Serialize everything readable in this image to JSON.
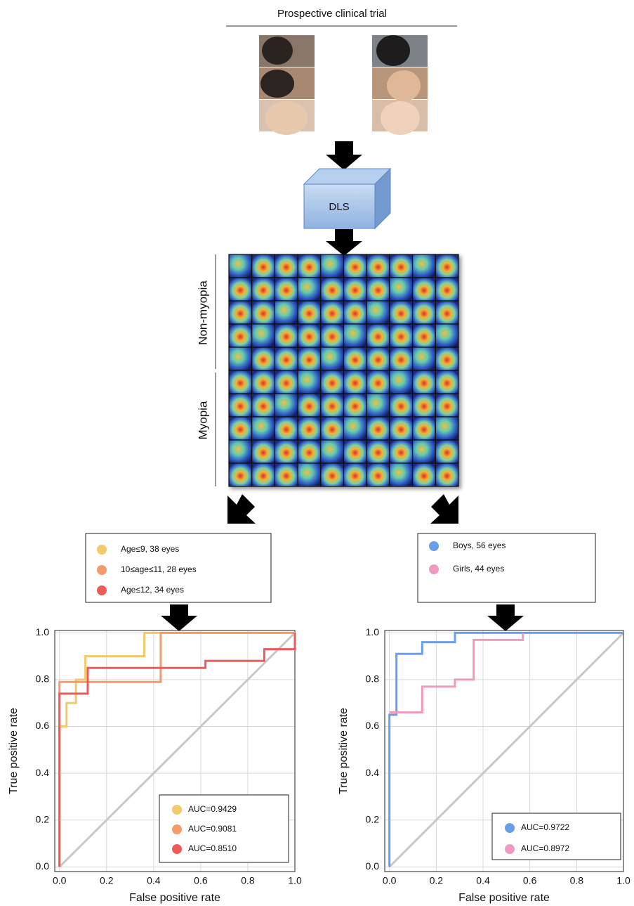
{
  "diagram": {
    "title": "Prospective clinical trial",
    "model": "DLS",
    "group_top": "Non-myopia",
    "group_bottom": "Myopia"
  },
  "chart_data": [
    {
      "type": "line",
      "x_label": "False positive rate",
      "y_label": "True positive rate",
      "xlim": [
        -0.02,
        1.0
      ],
      "ylim": [
        -0.02,
        1.01
      ],
      "xticks": [
        {
          "value": 0,
          "label": "0.0"
        },
        0.2,
        0.4,
        0.6,
        0.8,
        {
          "value": 1,
          "label": "1.0"
        }
      ],
      "yticks": [
        {
          "value": 0,
          "label": "0.0"
        },
        0.2,
        0.4,
        0.6,
        0.8,
        {
          "value": 1,
          "label": "1.0"
        }
      ],
      "grid": true,
      "series": [
        {
          "name": "Age≤9, 38 eyes",
          "auc_label": "AUC=0.9429",
          "color": "#f5c96a",
          "x": [
            0,
            0,
            0.03,
            0.03,
            0.07,
            0.07,
            0.11,
            0.11,
            0.36,
            0.36,
            1
          ],
          "values": [
            0,
            0.6,
            0.6,
            0.7,
            0.7,
            0.8,
            0.8,
            0.9,
            0.9,
            1.0,
            1.0
          ]
        },
        {
          "name": "10≤age≤11, 28 eyes",
          "auc_label": "AUC=0.9081",
          "color": "#f59a6a",
          "x": [
            0,
            0,
            0.43,
            0.43,
            1
          ],
          "values": [
            0,
            0.79,
            0.79,
            1.0,
            1.0
          ]
        },
        {
          "name": "Age≤12, 34 eyes",
          "auc_label": "AUC=0.8510",
          "color": "#ee5a5a",
          "x": [
            0,
            0,
            0.12,
            0.12,
            0.62,
            0.62,
            0.87,
            0.87,
            1,
            1
          ],
          "values": [
            0,
            0.74,
            0.74,
            0.85,
            0.85,
            0.88,
            0.88,
            0.93,
            0.93,
            1.0
          ]
        }
      ]
    },
    {
      "type": "line",
      "x_label": "False positive rate",
      "y_label": "True positive rate",
      "xlim": [
        -0.02,
        1.0
      ],
      "ylim": [
        -0.02,
        1.01
      ],
      "xticks": [
        {
          "value": 0,
          "label": "0.0"
        },
        0.2,
        0.4,
        0.6,
        0.8,
        {
          "value": 1,
          "label": "1.0"
        }
      ],
      "yticks": [
        {
          "value": 0,
          "label": "0.0"
        },
        0.2,
        0.4,
        0.6,
        0.8,
        {
          "value": 1,
          "label": "1.0"
        }
      ],
      "grid": true,
      "series": [
        {
          "name": "Boys, 56 eyes",
          "auc_label": "AUC=0.9722",
          "color": "#6a9eea",
          "x": [
            0,
            0,
            0.03,
            0.03,
            0.14,
            0.14,
            0.28,
            0.28,
            1
          ],
          "values": [
            0,
            0.65,
            0.65,
            0.91,
            0.91,
            0.96,
            0.96,
            1.0,
            1.0
          ]
        },
        {
          "name": "Girls, 44 eyes",
          "auc_label": "AUC=0.8972",
          "color": "#f09ac0",
          "x": [
            0,
            0.14,
            0.14,
            0.28,
            0.28,
            0.36,
            0.36,
            0.57,
            0.57
          ],
          "values": [
            0.66,
            0.66,
            0.77,
            0.77,
            0.8,
            0.8,
            0.97,
            0.97,
            1.0
          ]
        }
      ]
    }
  ]
}
